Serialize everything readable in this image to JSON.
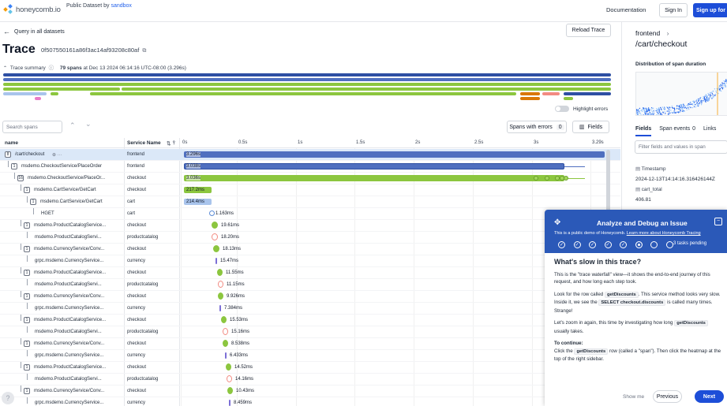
{
  "header": {
    "logo_text": "honeycomb.io",
    "dataset_prefix": "Public Dataset by",
    "dataset_link": "sandbox",
    "documentation": "Documentation",
    "sign_in": "Sign In",
    "sign_up": "Sign up for"
  },
  "toolbar": {
    "back_label": "Query in all datasets",
    "reload_label": "Reload Trace"
  },
  "trace": {
    "title": "Trace",
    "trace_id": "0f507550161a86f3ac14af93208c80af",
    "summary_label": "Trace summary",
    "spans": "79 spans",
    "at": "at Dec 13 2024 06:14:16 UTC-08:00 (3.296s)",
    "highlight_errors": "Highlight errors"
  },
  "controls": {
    "search_placeholder": "Search spans",
    "spans_with_errors": "Spans with errors",
    "error_count": "0",
    "fields": "Fields"
  },
  "table": {
    "col_name": "name",
    "col_service": "Service Name",
    "ticks": [
      "0s",
      "0.5s",
      "1s",
      "1.5s",
      "2s",
      "2.5s",
      "3s",
      "3.29s"
    ],
    "rows": [
      {
        "name": "/cart/checkout",
        "badge": "8",
        "service": "frontend",
        "duration": "3.296s",
        "indent": 0
      },
      {
        "name": "msdemo.CheckoutService/PlaceOrder",
        "badge": "1",
        "service": "frontend",
        "duration": "3.038s",
        "indent": 1
      },
      {
        "name": "msdemo.CheckoutService/PlaceOr...",
        "badge": "16",
        "service": "checkout",
        "duration": "3.036s",
        "indent": 2
      },
      {
        "name": "msdemo.CartService/GetCart",
        "badge": "1",
        "service": "checkout",
        "duration": "217.2ms",
        "indent": 3
      },
      {
        "name": "msdemo.CartService/GetCart",
        "badge": "1",
        "service": "cart",
        "duration": "214.4ms",
        "indent": 4
      },
      {
        "name": "HGET",
        "badge": "",
        "service": "cart",
        "duration": "1.163ms",
        "indent": 5
      },
      {
        "name": "msdemo.ProductCatalogService...",
        "badge": "1",
        "service": "checkout",
        "duration": "19.61ms",
        "indent": 3
      },
      {
        "name": "msdemo.ProductCatalogServi...",
        "badge": "",
        "service": "productcatalog",
        "duration": "18.20ms",
        "indent": 4
      },
      {
        "name": "msdemo.CurrencyService/Conv...",
        "badge": "1",
        "service": "checkout",
        "duration": "18.13ms",
        "indent": 3
      },
      {
        "name": "grpc.msdemo.CurrencyService...",
        "badge": "",
        "service": "currency",
        "duration": "15.47ms",
        "indent": 4
      },
      {
        "name": "msdemo.ProductCatalogService...",
        "badge": "1",
        "service": "checkout",
        "duration": "11.55ms",
        "indent": 3
      },
      {
        "name": "msdemo.ProductCatalogServi...",
        "badge": "",
        "service": "productcatalog",
        "duration": "11.15ms",
        "indent": 4
      },
      {
        "name": "msdemo.CurrencyService/Conv...",
        "badge": "1",
        "service": "checkout",
        "duration": "9.926ms",
        "indent": 3
      },
      {
        "name": "grpc.msdemo.CurrencyService...",
        "badge": "",
        "service": "currency",
        "duration": "7.384ms",
        "indent": 4
      },
      {
        "name": "msdemo.ProductCatalogService...",
        "badge": "1",
        "service": "checkout",
        "duration": "15.53ms",
        "indent": 3
      },
      {
        "name": "msdemo.ProductCatalogServi...",
        "badge": "",
        "service": "productcatalog",
        "duration": "15.16ms",
        "indent": 4
      },
      {
        "name": "msdemo.CurrencyService/Conv...",
        "badge": "1",
        "service": "checkout",
        "duration": "8.538ms",
        "indent": 3
      },
      {
        "name": "grpc.msdemo.CurrencyService...",
        "badge": "",
        "service": "currency",
        "duration": "6.433ms",
        "indent": 4
      },
      {
        "name": "msdemo.ProductCatalogService...",
        "badge": "1",
        "service": "checkout",
        "duration": "14.52ms",
        "indent": 3
      },
      {
        "name": "msdemo.ProductCatalogServi...",
        "badge": "",
        "service": "productcatalog",
        "duration": "14.16ms",
        "indent": 4
      },
      {
        "name": "msdemo.CurrencyService/Conv...",
        "badge": "1",
        "service": "checkout",
        "duration": "10.43ms",
        "indent": 3
      },
      {
        "name": "grpc.msdemo.CurrencyService...",
        "badge": "",
        "service": "currency",
        "duration": "8.459ms",
        "indent": 4
      }
    ]
  },
  "sidebar": {
    "service": "frontend",
    "route": "/cart/checkout",
    "distribution_title": "Distribution of span duration",
    "tabs": [
      "Fields",
      "Span events",
      "Links"
    ],
    "tab_events_count": "0",
    "filter_placeholder": "Filter fields and values in span",
    "fields": [
      {
        "key": "Timestamp",
        "value": "2024-12-13T14:14:16.316426144Z"
      },
      {
        "key": "cart_total",
        "value": "406.81"
      }
    ]
  },
  "tutorial": {
    "title": "Analyze and Debug an Issue",
    "subtitle_prefix": "This is a public demo of Honeycomb.",
    "subtitle_link": "Learn more about Honeycomb Tracing",
    "tasks_pending": "3 tasks pending",
    "heading": "What's slow in this trace?",
    "p1": "This is the \"trace waterfall\" view—it shows the end-to-end journey of this request, and how long each step took.",
    "p2a": "Look for the row called",
    "p2code": "getDiscounts",
    "p2b": ". This service method looks very slow. Inside it, we see the",
    "p2code2": "SELECT checkout.discounts",
    "p2c": "is called many times. Strange!",
    "p3a": "Let's zoom in again, this time by investigating how long",
    "p3code": "getDiscounts",
    "p3b": "usually takes.",
    "continue_label": "To continue:",
    "p4a": "Click the",
    "p4code": "getDiscounts",
    "p4b": "row (called a \"span\"). Then click the heatmap at the top of the right sidebar.",
    "show_me": "Show me",
    "previous": "Previous",
    "next": "Next"
  },
  "colors": {
    "frontend": "#4f6fbf",
    "checkout": "#8cc63f",
    "cart": "#a9c4ec",
    "productcatalog": "#f28b82",
    "currency": "#7c6fd6",
    "accent": "#1d4ed8"
  }
}
